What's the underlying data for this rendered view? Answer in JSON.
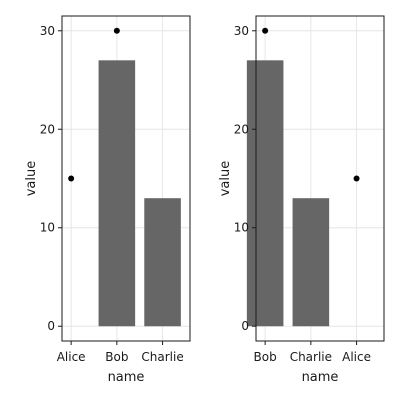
{
  "chart_data": [
    {
      "type": "bar",
      "categories": [
        "Alice",
        "Bob",
        "Charlie"
      ],
      "series": [
        {
          "kind": "bar",
          "points": [
            {
              "x": "Bob",
              "y": 27
            },
            {
              "x": "Charlie",
              "y": 13
            }
          ]
        },
        {
          "kind": "scatter",
          "points": [
            {
              "x": "Alice",
              "y": 15
            },
            {
              "x": "Bob",
              "y": 30
            }
          ]
        }
      ],
      "xlabel": "name",
      "ylabel": "value",
      "yticks": [
        0,
        10,
        20,
        30
      ],
      "ylim": [
        -1.5,
        31.5
      ],
      "grid": true
    },
    {
      "type": "bar",
      "categories": [
        "Bob",
        "Charlie",
        "Alice"
      ],
      "series": [
        {
          "kind": "bar",
          "points": [
            {
              "x": "Bob",
              "y": 27
            },
            {
              "x": "Charlie",
              "y": 13
            }
          ]
        },
        {
          "kind": "scatter",
          "points": [
            {
              "x": "Bob",
              "y": 30
            },
            {
              "x": "Alice",
              "y": 15
            }
          ]
        }
      ],
      "xlabel": "name",
      "ylabel": "value",
      "yticks": [
        0,
        10,
        20,
        30
      ],
      "ylim": [
        -1.5,
        31.5
      ],
      "grid": true
    }
  ]
}
